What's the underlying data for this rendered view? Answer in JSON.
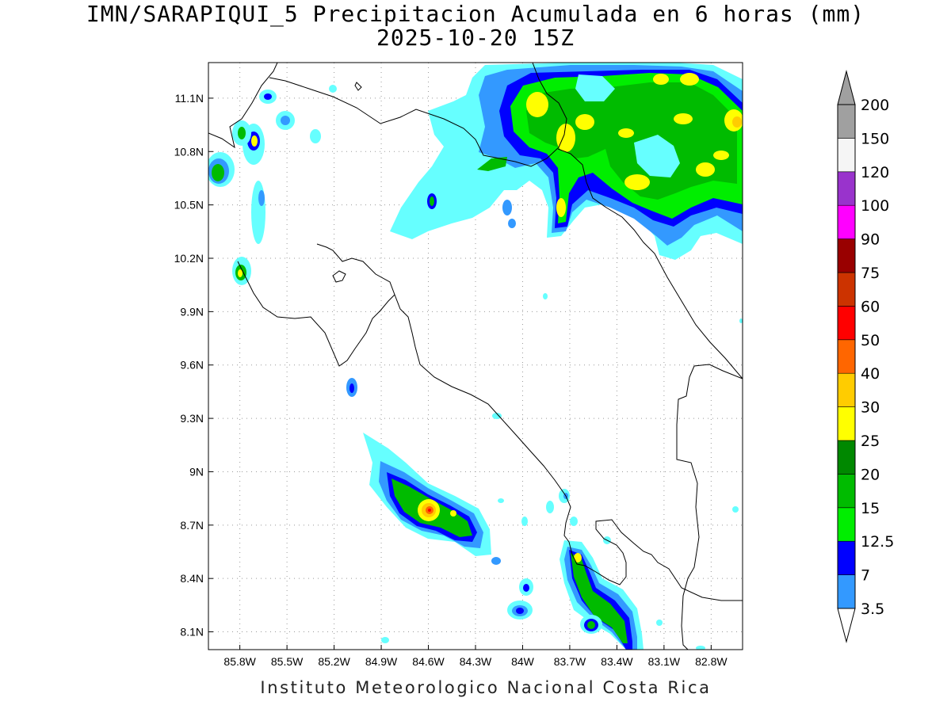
{
  "title": {
    "line1": "IMN/SARAPIQUI_5 Precipitacion Acumulada en 6 horas (mm)",
    "line2": "2025-10-20 15Z"
  },
  "footer": {
    "credit": "Instituto Meteorologico Nacional Costa Rica"
  },
  "map": {
    "lon_range": [
      -86.0,
      -82.6
    ],
    "lat_range": [
      8.0,
      11.3
    ],
    "lat_ticks": [
      {
        "value": 11.1,
        "label": "11.1N"
      },
      {
        "value": 10.8,
        "label": "10.8N"
      },
      {
        "value": 10.5,
        "label": "10.5N"
      },
      {
        "value": 10.2,
        "label": "10.2N"
      },
      {
        "value": 9.9,
        "label": "9.9N"
      },
      {
        "value": 9.6,
        "label": "9.6N"
      },
      {
        "value": 9.3,
        "label": "9.3N"
      },
      {
        "value": 9.0,
        "label": "9N"
      },
      {
        "value": 8.7,
        "label": "8.7N"
      },
      {
        "value": 8.4,
        "label": "8.4N"
      },
      {
        "value": 8.1,
        "label": "8.1N"
      }
    ],
    "lon_ticks": [
      {
        "value": -85.8,
        "label": "85.8W"
      },
      {
        "value": -85.5,
        "label": "85.5W"
      },
      {
        "value": -85.2,
        "label": "85.2W"
      },
      {
        "value": -84.9,
        "label": "84.9W"
      },
      {
        "value": -84.6,
        "label": "84.6W"
      },
      {
        "value": -84.3,
        "label": "84.3W"
      },
      {
        "value": -84.0,
        "label": "84W"
      },
      {
        "value": -83.7,
        "label": "83.7W"
      },
      {
        "value": -83.4,
        "label": "83.4W"
      },
      {
        "value": -83.1,
        "label": "83.1W"
      },
      {
        "value": -82.8,
        "label": "82.8W"
      }
    ],
    "grid": "dotted"
  },
  "colorbar": {
    "units": "mm",
    "levels": [
      {
        "value": "3.5",
        "color": "#66ffff"
      },
      {
        "value": "7",
        "color": "#3399ff"
      },
      {
        "value": "12.5",
        "color": "#0000ff"
      },
      {
        "value": "15",
        "color": "#00ee00"
      },
      {
        "value": "20",
        "color": "#00bb00"
      },
      {
        "value": "25",
        "color": "#008800"
      },
      {
        "value": "30",
        "color": "#ffff00"
      },
      {
        "value": "40",
        "color": "#ffcc00"
      },
      {
        "value": "50",
        "color": "#ff6600"
      },
      {
        "value": "60",
        "color": "#ff0000"
      },
      {
        "value": "75",
        "color": "#cc3300"
      },
      {
        "value": "90",
        "color": "#990000"
      },
      {
        "value": "100",
        "color": "#ff00ff"
      },
      {
        "value": "120",
        "color": "#9933cc"
      },
      {
        "value": "150",
        "color": "#f5f5f5"
      },
      {
        "value": "200",
        "color": "#a0a0a0"
      }
    ]
  }
}
